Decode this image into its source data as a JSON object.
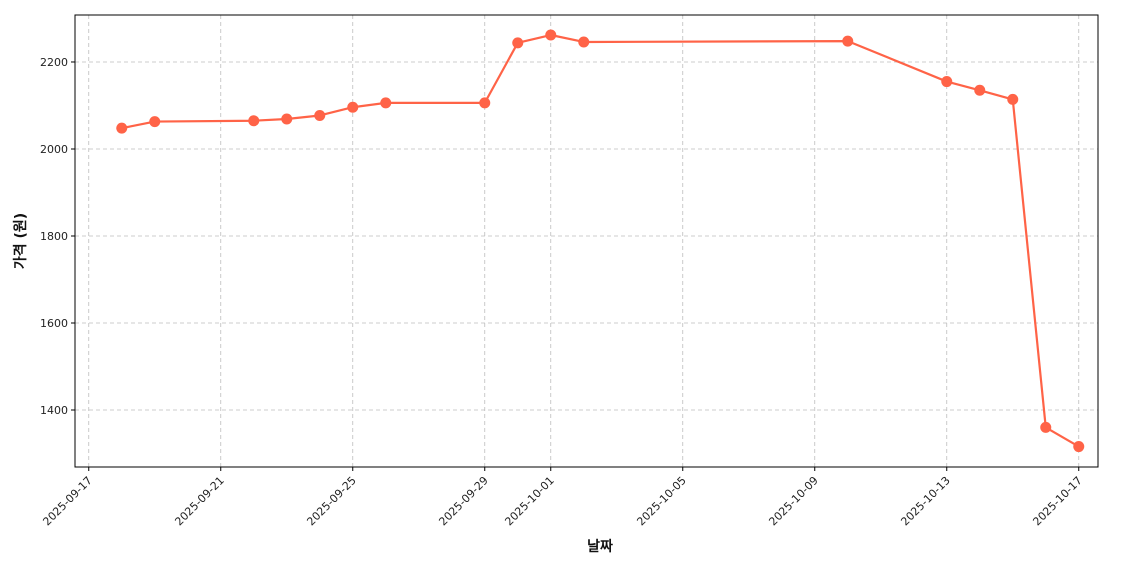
{
  "chart_data": {
    "type": "line",
    "title": "",
    "xlabel": "날짜",
    "ylabel": "가격 (원)",
    "x": [
      "2025-09-18",
      "2025-09-19",
      "2025-09-22",
      "2025-09-23",
      "2025-09-24",
      "2025-09-25",
      "2025-09-26",
      "2025-09-29",
      "2025-09-30",
      "2025-10-01",
      "2025-10-02",
      "2025-10-10",
      "2025-10-13",
      "2025-10-14",
      "2025-10-15",
      "2025-10-16",
      "2025-10-17"
    ],
    "series": [
      {
        "values": [
          2048,
          2063,
          2065,
          2069,
          2077,
          2096,
          2106,
          2106,
          2244,
          2262,
          2246,
          2248,
          2155,
          2135,
          2114,
          1360,
          1316
        ],
        "color": "#ff6347",
        "marker": "circle"
      }
    ],
    "xticks": [
      "2025-09-17",
      "2025-09-21",
      "2025-09-25",
      "2025-09-29",
      "2025-10-01",
      "2025-10-05",
      "2025-10-09",
      "2025-10-13",
      "2025-10-17"
    ],
    "yticks": [
      1400,
      1600,
      1800,
      2000,
      2200
    ],
    "xlim": [
      "2025-09-16T14:00",
      "2025-10-17T14:00"
    ],
    "ylim": [
      1269,
      2308
    ],
    "grid": true,
    "grid_style": "dashed"
  }
}
